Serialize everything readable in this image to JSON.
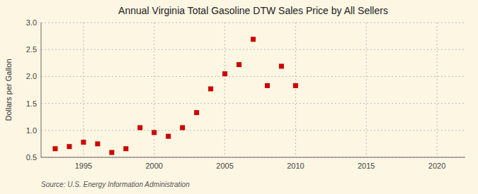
{
  "chart_data": {
    "type": "scatter",
    "title": "Annual Virginia Total Gasoline DTW Sales Price by All Sellers",
    "y_label": "Dollars per Gallon",
    "annotations": [
      "Source: U.S. Energy Information Administration"
    ],
    "x": [
      1993,
      1994,
      1995,
      1996,
      1997,
      1998,
      1999,
      2000,
      2001,
      2002,
      2003,
      2004,
      2005,
      2006,
      2007,
      2008,
      2009,
      2010
    ],
    "values": [
      0.66,
      0.7,
      0.78,
      0.75,
      0.59,
      0.66,
      1.05,
      0.96,
      0.89,
      1.05,
      1.33,
      1.77,
      2.05,
      2.22,
      2.69,
      1.83,
      2.19,
      1.83
    ],
    "xlim": [
      1992,
      2022
    ],
    "ylim": [
      0.5,
      3.0
    ],
    "xticks": [
      1995,
      2000,
      2005,
      2010,
      2015,
      2020
    ],
    "yticks": [
      0.5,
      {
        "value": 1.0,
        "label": "1.0"
      },
      1.5,
      {
        "value": 2.0,
        "label": "2.0"
      },
      2.5,
      {
        "value": 3.0,
        "label": "3.0"
      }
    ],
    "color": "#cc0000",
    "marker": "square",
    "grid": true
  }
}
